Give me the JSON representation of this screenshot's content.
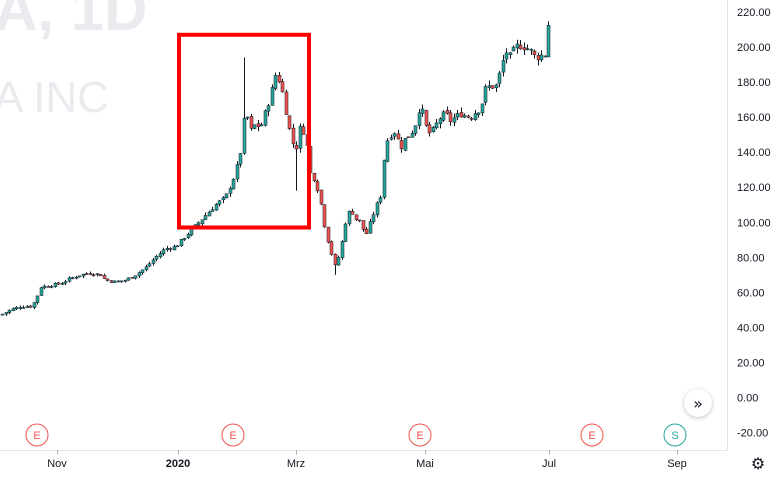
{
  "watermark": {
    "symbol_line": "A, 1D",
    "name_line": "A INC"
  },
  "colors": {
    "up": "#26a69a",
    "down": "#ef5350",
    "candle_outline": "#131722",
    "highlight_box": "#ff0000",
    "event_earnings": "#ef5350",
    "event_split": "#26a69a"
  },
  "chart_data": {
    "type": "candlestick",
    "title": "",
    "yaxis": {
      "min": -20,
      "max": 220,
      "ticks": [
        "220.00",
        "200.00",
        "180.00",
        "160.00",
        "140.00",
        "120.00",
        "100.00",
        "80.00",
        "60.00",
        "40.00",
        "20.00",
        "0.00",
        "-20.00"
      ]
    },
    "xaxis": {
      "ticks": [
        "Nov",
        "2020",
        "Mrz",
        "Mai",
        "Jul",
        "Sep"
      ]
    },
    "events": [
      {
        "label": "E",
        "kind": "earnings"
      },
      {
        "label": "E",
        "kind": "earnings"
      },
      {
        "label": "E",
        "kind": "earnings"
      },
      {
        "label": "E",
        "kind": "earnings"
      },
      {
        "label": "S",
        "kind": "split"
      }
    ],
    "highlight": {
      "from_price": 97,
      "to_price": 207
    },
    "close_path": [
      [
        0,
        47
      ],
      [
        10,
        50
      ],
      [
        20,
        52
      ],
      [
        30,
        52
      ],
      [
        35,
        55
      ],
      [
        40,
        63
      ],
      [
        50,
        64
      ],
      [
        60,
        65
      ],
      [
        70,
        68
      ],
      [
        80,
        70
      ],
      [
        90,
        71
      ],
      [
        100,
        70
      ],
      [
        105,
        67
      ],
      [
        115,
        66
      ],
      [
        125,
        67
      ],
      [
        135,
        70
      ],
      [
        145,
        74
      ],
      [
        155,
        80
      ],
      [
        165,
        85
      ],
      [
        175,
        86
      ],
      [
        185,
        92
      ],
      [
        195,
        98
      ],
      [
        205,
        104
      ],
      [
        215,
        110
      ],
      [
        225,
        114
      ],
      [
        235,
        128
      ],
      [
        240,
        140
      ],
      [
        245,
        165
      ],
      [
        250,
        152
      ],
      [
        255,
        156
      ],
      [
        260,
        154
      ],
      [
        265,
        163
      ],
      [
        270,
        172
      ],
      [
        275,
        184
      ],
      [
        280,
        180
      ],
      [
        285,
        165
      ],
      [
        290,
        150
      ],
      [
        295,
        140
      ],
      [
        300,
        155
      ],
      [
        305,
        150
      ],
      [
        310,
        128
      ],
      [
        315,
        124
      ],
      [
        320,
        112
      ],
      [
        325,
        95
      ],
      [
        330,
        84
      ],
      [
        335,
        74
      ],
      [
        340,
        84
      ],
      [
        345,
        100
      ],
      [
        350,
        108
      ],
      [
        355,
        102
      ],
      [
        360,
        100
      ],
      [
        365,
        92
      ],
      [
        370,
        100
      ],
      [
        375,
        108
      ],
      [
        380,
        115
      ],
      [
        385,
        145
      ],
      [
        390,
        150
      ],
      [
        395,
        152
      ],
      [
        400,
        142
      ],
      [
        405,
        148
      ],
      [
        410,
        150
      ],
      [
        415,
        156
      ],
      [
        420,
        168
      ],
      [
        425,
        155
      ],
      [
        430,
        150
      ],
      [
        435,
        155
      ],
      [
        440,
        160
      ],
      [
        445,
        162
      ],
      [
        450,
        158
      ],
      [
        455,
        160
      ],
      [
        460,
        162
      ],
      [
        465,
        161
      ],
      [
        470,
        160
      ],
      [
        475,
        163
      ],
      [
        480,
        165
      ],
      [
        485,
        176
      ],
      [
        490,
        178
      ],
      [
        495,
        177
      ],
      [
        500,
        186
      ],
      [
        505,
        198
      ],
      [
        510,
        194
      ],
      [
        515,
        200
      ],
      [
        520,
        201
      ],
      [
        525,
        200
      ],
      [
        530,
        198
      ],
      [
        535,
        194
      ],
      [
        540,
        195
      ],
      [
        545,
        196
      ],
      [
        548,
        213
      ],
      [
        551,
        226
      ]
    ]
  }
}
